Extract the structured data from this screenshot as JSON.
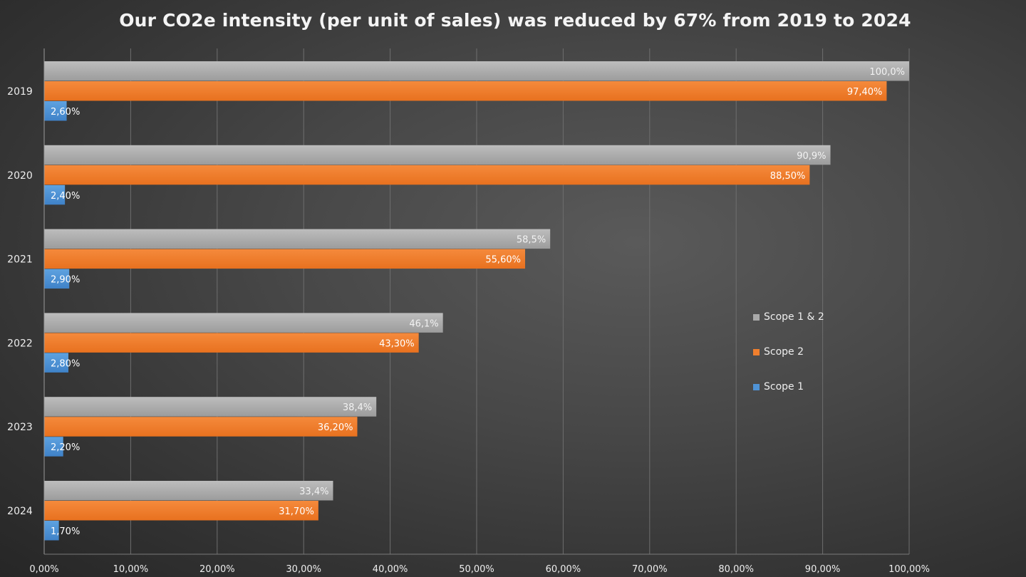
{
  "chart_data": {
    "type": "bar",
    "orientation": "horizontal",
    "title": "Our CO2e intensity (per unit of sales) was reduced by 67% from 2019 to 2024",
    "xlabel": "",
    "ylabel": "",
    "categories": [
      "2019",
      "2020",
      "2021",
      "2022",
      "2023",
      "2024"
    ],
    "xlim": [
      0,
      100
    ],
    "x_ticks": [
      0,
      10,
      20,
      30,
      40,
      50,
      60,
      70,
      80,
      90,
      100
    ],
    "x_tick_labels": [
      "0,00%",
      "10,00%",
      "20,00%",
      "30,00%",
      "40,00%",
      "50,00%",
      "60,00%",
      "70,00%",
      "80,00%",
      "90,00%",
      "100,00%"
    ],
    "grid": "vertical",
    "legend_position": "right",
    "series": [
      {
        "name": "Scope 1 & 2",
        "color": "#a9a9a9",
        "values": [
          100.0,
          90.9,
          58.5,
          46.1,
          38.4,
          33.4
        ],
        "labels": [
          "100,0%",
          "90,9%",
          "58,5%",
          "46,1%",
          "38,4%",
          "33,4%"
        ]
      },
      {
        "name": "Scope 2",
        "color": "#f07f2e",
        "values": [
          97.4,
          88.5,
          55.6,
          43.3,
          36.2,
          31.7
        ],
        "labels": [
          "97,40%",
          "88,50%",
          "55,60%",
          "43,30%",
          "36,20%",
          "31,70%"
        ]
      },
      {
        "name": "Scope 1",
        "color": "#4f93d6",
        "values": [
          2.6,
          2.4,
          2.9,
          2.8,
          2.2,
          1.7
        ],
        "labels": [
          "2,60%",
          "2,40%",
          "2,90%",
          "2,80%",
          "2,20%",
          "1,70%"
        ]
      }
    ]
  }
}
